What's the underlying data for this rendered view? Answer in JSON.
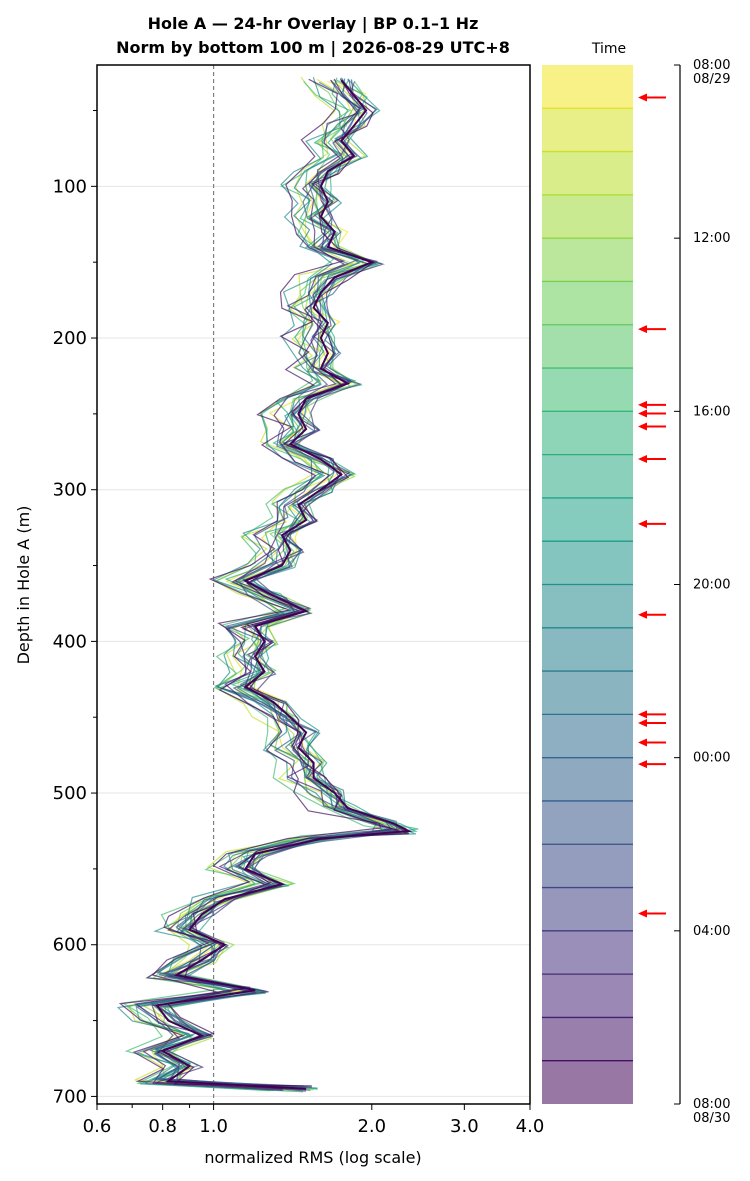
{
  "chart_data": {
    "type": "line",
    "title_line1": "Hole A — 24-hr Overlay  |  BP 0.1–1 Hz",
    "title_line2": "Norm by bottom 100 m  |  2026-08-29 UTC+8",
    "xlabel": "normalized RMS  (log scale)",
    "ylabel": "Depth in Hole A (m)",
    "x_scale": "log",
    "xlim": [
      0.6,
      4.0
    ],
    "ylim": [
      705,
      20
    ],
    "x_ticks": [
      "0.6",
      "0.8",
      "1.0",
      "2.0",
      "3.0",
      "4.0"
    ],
    "y_ticks": [
      "100",
      "200",
      "300",
      "400",
      "500",
      "600",
      "700"
    ],
    "reference_line_x": 1.0,
    "grid": "horizontal",
    "depth_profile": {
      "depths": [
        30,
        40,
        50,
        60,
        70,
        80,
        90,
        100,
        110,
        120,
        130,
        140,
        150,
        160,
        170,
        180,
        190,
        200,
        210,
        220,
        230,
        240,
        250,
        260,
        270,
        280,
        290,
        300,
        310,
        320,
        330,
        340,
        350,
        360,
        370,
        380,
        390,
        400,
        410,
        420,
        430,
        440,
        450,
        460,
        470,
        480,
        490,
        500,
        510,
        520,
        525,
        530,
        540,
        550,
        560,
        570,
        580,
        590,
        600,
        610,
        620,
        630,
        640,
        650,
        660,
        670,
        680,
        690,
        695
      ],
      "values": [
        1.75,
        1.85,
        1.95,
        1.85,
        1.75,
        1.85,
        1.65,
        1.6,
        1.65,
        1.6,
        1.7,
        1.65,
        2.0,
        1.7,
        1.6,
        1.55,
        1.65,
        1.6,
        1.65,
        1.6,
        1.8,
        1.5,
        1.45,
        1.5,
        1.4,
        1.6,
        1.75,
        1.6,
        1.45,
        1.5,
        1.35,
        1.4,
        1.35,
        1.15,
        1.3,
        1.5,
        1.2,
        1.25,
        1.2,
        1.25,
        1.15,
        1.3,
        1.4,
        1.5,
        1.45,
        1.55,
        1.55,
        1.7,
        1.8,
        2.2,
        2.35,
        1.6,
        1.2,
        1.15,
        1.35,
        1.05,
        0.95,
        0.9,
        1.05,
        0.95,
        0.85,
        1.2,
        0.78,
        0.82,
        0.95,
        0.8,
        0.9,
        0.82,
        1.5
      ]
    },
    "series_count": 24,
    "colorbar": {
      "title": "Time",
      "colormap": "viridis",
      "ticks": [
        {
          "label": "08:00",
          "sub": "08/29",
          "hours": 0
        },
        {
          "label": "12:00",
          "sub": "",
          "hours": 4
        },
        {
          "label": "16:00",
          "sub": "",
          "hours": 8
        },
        {
          "label": "20:00",
          "sub": "",
          "hours": 12
        },
        {
          "label": "00:00",
          "sub": "",
          "hours": 16
        },
        {
          "label": "04:00",
          "sub": "",
          "hours": 20
        },
        {
          "label": "08:00",
          "sub": "08/30",
          "hours": 24
        }
      ],
      "arrow_hours": [
        0.75,
        6.1,
        7.85,
        8.05,
        8.35,
        9.1,
        10.6,
        12.7,
        15.0,
        15.2,
        15.65,
        16.15,
        19.6
      ]
    },
    "colors": {
      "reference_line": "#808080",
      "arrow": "#ff0000",
      "grid": "#e6e6e6"
    }
  }
}
